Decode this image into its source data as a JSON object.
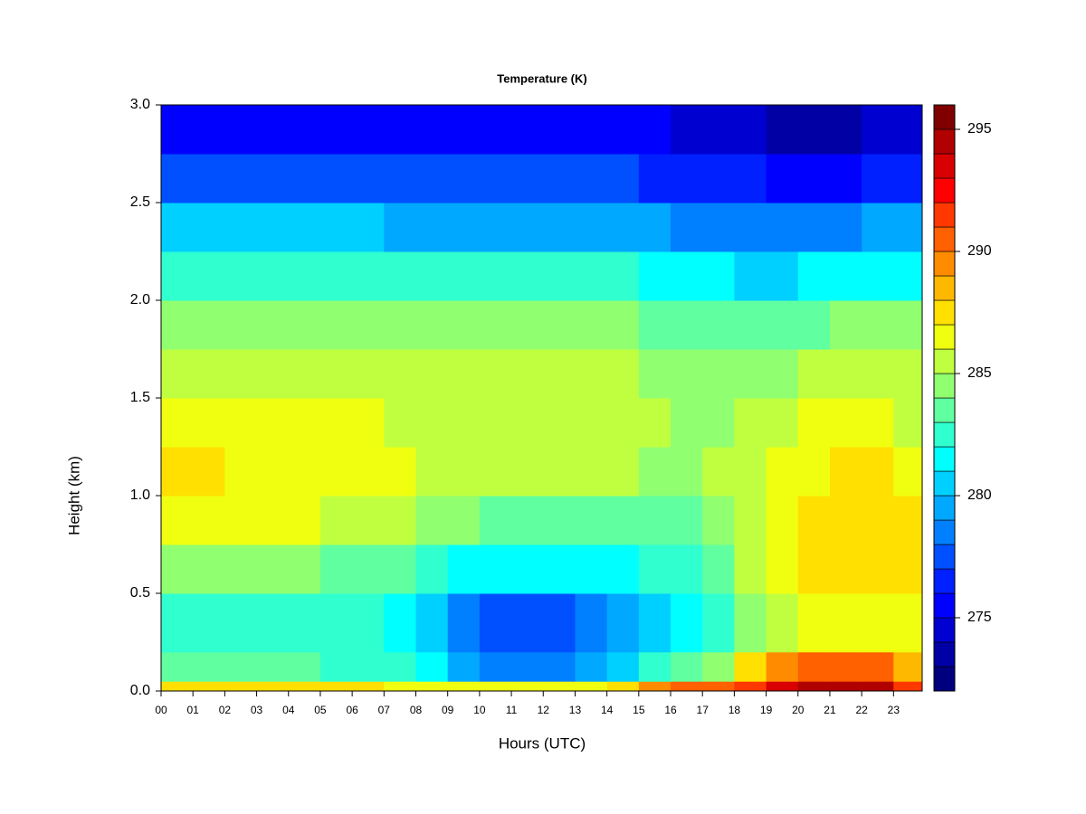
{
  "chart_data": {
    "type": "heatmap",
    "title": "Temperature (K)",
    "x_label": "Hours (UTC)",
    "y_label": "Height (km)",
    "x": [
      0,
      1,
      2,
      3,
      4,
      5,
      6,
      7,
      8,
      9,
      10,
      11,
      12,
      13,
      14,
      15,
      16,
      17,
      18,
      19,
      20,
      21,
      22,
      23
    ],
    "y_edges": [
      0,
      0.05,
      0.2,
      0.5,
      0.75,
      1.0,
      1.25,
      1.5,
      1.75,
      2.0,
      2.25,
      2.5,
      2.75,
      3.0
    ],
    "values": [
      [
        287,
        287,
        287,
        287,
        287,
        287,
        287,
        286,
        286,
        286,
        286,
        286,
        286,
        286,
        287,
        289,
        290,
        290,
        291,
        293,
        294,
        294,
        294,
        291
      ],
      [
        283,
        283,
        283,
        283,
        283,
        282,
        282,
        282,
        281,
        279,
        278,
        278,
        278,
        279,
        280,
        282,
        283,
        284,
        287,
        289,
        290,
        290,
        290,
        288
      ],
      [
        282,
        282,
        282,
        282,
        282,
        282,
        282,
        281,
        280,
        278,
        277,
        277,
        277,
        278,
        279,
        280,
        281,
        282,
        284,
        285,
        286,
        286,
        286,
        286
      ],
      [
        284,
        284,
        284,
        284,
        284,
        283,
        283,
        283,
        282,
        281,
        281,
        281,
        281,
        281,
        281,
        282,
        282,
        283,
        285,
        286,
        287,
        287,
        287,
        287
      ],
      [
        286,
        286,
        286,
        286,
        286,
        285,
        285,
        285,
        284,
        284,
        283,
        283,
        283,
        283,
        283,
        283,
        283,
        284,
        285,
        286,
        287,
        287,
        287,
        287
      ],
      [
        287,
        287,
        286,
        286,
        286,
        286,
        286,
        286,
        285,
        285,
        285,
        285,
        285,
        285,
        285,
        284,
        284,
        285,
        285,
        286,
        286,
        287,
        287,
        286
      ],
      [
        286,
        286,
        286,
        286,
        286,
        286,
        286,
        285,
        285,
        285,
        285,
        285,
        285,
        285,
        285,
        285,
        284,
        284,
        285,
        285,
        286,
        286,
        286,
        285
      ],
      [
        285,
        285,
        285,
        285,
        285,
        285,
        285,
        285,
        285,
        285,
        285,
        285,
        285,
        285,
        285,
        284,
        284,
        284,
        284,
        284,
        285,
        285,
        285,
        285
      ],
      [
        284,
        284,
        284,
        284,
        284,
        284,
        284,
        284,
        284,
        284,
        284,
        284,
        284,
        284,
        284,
        283,
        283,
        283,
        283,
        283,
        283,
        284,
        284,
        284
      ],
      [
        282,
        282,
        282,
        282,
        282,
        282,
        282,
        282,
        282,
        282,
        282,
        282,
        282,
        282,
        282,
        281,
        281,
        281,
        280,
        280,
        281,
        281,
        281,
        281
      ],
      [
        280,
        280,
        280,
        280,
        280,
        280,
        280,
        279,
        279,
        279,
        279,
        279,
        279,
        279,
        279,
        279,
        278,
        278,
        278,
        278,
        278,
        278,
        279,
        279
      ],
      [
        277,
        277,
        277,
        277,
        277,
        277,
        277,
        277,
        277,
        277,
        277,
        277,
        277,
        277,
        277,
        276,
        276,
        276,
        276,
        275,
        275,
        275,
        276,
        276
      ],
      [
        275,
        275,
        275,
        275,
        275,
        275,
        275,
        275,
        275,
        275,
        275,
        275,
        275,
        275,
        275,
        275,
        274,
        274,
        274,
        273,
        273,
        273,
        274,
        274
      ]
    ],
    "xlim": [
      0,
      23.9
    ],
    "ylim": [
      0,
      3
    ],
    "xticks": [
      {
        "value": 0,
        "label": "00"
      },
      {
        "value": 1,
        "label": "01"
      },
      {
        "value": 2,
        "label": "02"
      },
      {
        "value": 3,
        "label": "03"
      },
      {
        "value": 4,
        "label": "04"
      },
      {
        "value": 5,
        "label": "05"
      },
      {
        "value": 6,
        "label": "06"
      },
      {
        "value": 7,
        "label": "07"
      },
      {
        "value": 8,
        "label": "08"
      },
      {
        "value": 9,
        "label": "09"
      },
      {
        "value": 10,
        "label": "10"
      },
      {
        "value": 11,
        "label": "11"
      },
      {
        "value": 12,
        "label": "12"
      },
      {
        "value": 13,
        "label": "13"
      },
      {
        "value": 14,
        "label": "14"
      },
      {
        "value": 15,
        "label": "15"
      },
      {
        "value": 16,
        "label": "16"
      },
      {
        "value": 17,
        "label": "17"
      },
      {
        "value": 18,
        "label": "18"
      },
      {
        "value": 19,
        "label": "19"
      },
      {
        "value": 20,
        "label": "20"
      },
      {
        "value": 21,
        "label": "21"
      },
      {
        "value": 22,
        "label": "22"
      },
      {
        "value": 23,
        "label": "23"
      }
    ],
    "yticks": [
      {
        "value": 0,
        "label": "0.0"
      },
      0.5,
      {
        "value": 1,
        "label": "1.0"
      },
      1.5,
      {
        "value": 2,
        "label": "2.0"
      },
      2.5,
      {
        "value": 3,
        "label": "3.0"
      }
    ],
    "levels": [
      272,
      273,
      274,
      275,
      276,
      277,
      278,
      279,
      280,
      281,
      282,
      283,
      284,
      285,
      286,
      287,
      288,
      289,
      290,
      291,
      292,
      293,
      294,
      295,
      296
    ],
    "colors": [
      "#00007f",
      "#0000a5",
      "#0000d0",
      "#0000ff",
      "#0020ff",
      "#0050ff",
      "#0080ff",
      "#00a8ff",
      "#00d0ff",
      "#00ffff",
      "#30ffd0",
      "#60ffa0",
      "#90ff70",
      "#c0ff40",
      "#f0ff10",
      "#ffe000",
      "#ffb800",
      "#ff8c00",
      "#ff6000",
      "#ff3800",
      "#ff0000",
      "#d80000",
      "#b00000",
      "#800000"
    ],
    "colorbar_ticks": [
      275,
      280,
      285,
      290,
      295
    ]
  }
}
